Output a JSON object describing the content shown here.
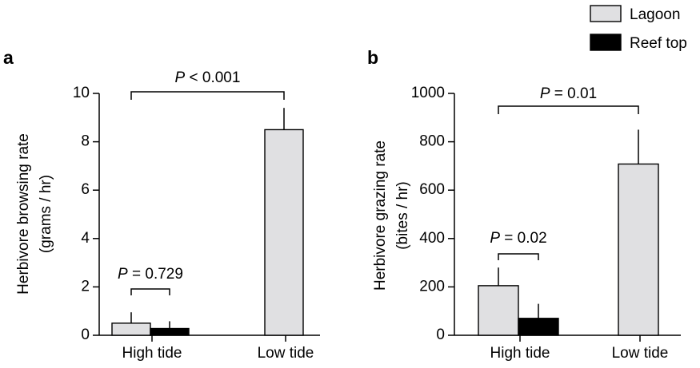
{
  "legend": [
    {
      "label": "Lagoon",
      "color": "#e0e0e2"
    },
    {
      "label": "Reef top",
      "color": "#000000"
    }
  ],
  "chart_data": [
    {
      "type": "bar",
      "panel_label": "a",
      "ylabel": "Herbivore browsing rate\n(grams / hr)",
      "ylabel_lines": [
        "Herbivore browsing rate",
        "(grams / hr)"
      ],
      "ylim": [
        0,
        10
      ],
      "yticks": [
        0,
        2,
        4,
        6,
        8,
        10
      ],
      "categories": [
        "High tide",
        "Low tide"
      ],
      "series": [
        {
          "name": "Lagoon",
          "color": "#e0e0e2",
          "values": [
            0.5,
            8.5
          ],
          "errors": [
            0.45,
            0.9
          ]
        },
        {
          "name": "Reef top",
          "color": "#000000",
          "values": [
            0.28,
            null
          ],
          "errors": [
            0.3,
            null
          ]
        }
      ],
      "annotations": [
        {
          "prefix": "P",
          "op": " = ",
          "value": "0.729",
          "span": "High tide"
        },
        {
          "prefix": "P",
          "op": " < ",
          "value": "0.001",
          "span": "High tide Lagoon – Low tide Lagoon"
        }
      ]
    },
    {
      "type": "bar",
      "panel_label": "b",
      "ylabel": "Herbivore grazing rate\n(bites / hr)",
      "ylabel_lines": [
        "Herbivore grazing rate",
        "(bites / hr)"
      ],
      "ylim": [
        0,
        1000
      ],
      "yticks": [
        0,
        200,
        400,
        600,
        800,
        1000
      ],
      "categories": [
        "High tide",
        "Low tide"
      ],
      "series": [
        {
          "name": "Lagoon",
          "color": "#e0e0e2",
          "values": [
            205,
            708
          ],
          "errors": [
            75,
            142
          ]
        },
        {
          "name": "Reef top",
          "color": "#000000",
          "values": [
            70,
            null
          ],
          "errors": [
            60,
            null
          ]
        }
      ],
      "annotations": [
        {
          "prefix": "P",
          "op": " = ",
          "value": "0.02",
          "span": "High tide"
        },
        {
          "prefix": "P",
          "op": " = ",
          "value": "0.01",
          "span": "High tide Lagoon – Low tide Lagoon"
        }
      ]
    }
  ]
}
